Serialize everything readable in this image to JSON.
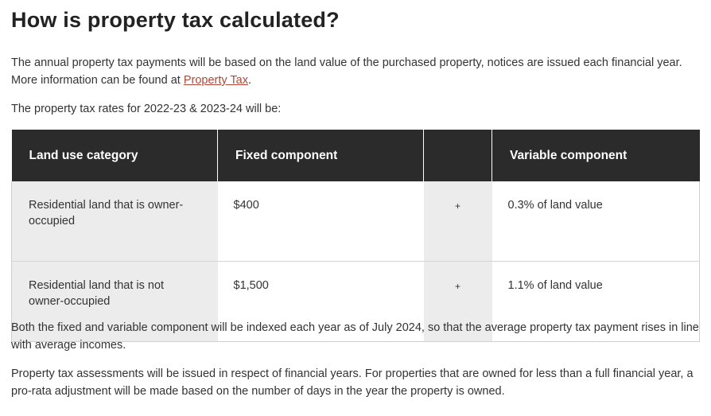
{
  "heading": "How is property tax calculated?",
  "intro": {
    "text_before": "The annual property tax payments will be based on the land value of the purchased property, notices are issued each financial year. More information can be found at ",
    "link_text": "Property Tax",
    "text_after": "."
  },
  "rates_intro": "The property tax rates for 2022-23 & 2023-24 will be:",
  "table": {
    "headers": [
      "Land use category",
      "Fixed component",
      "",
      "Variable component"
    ],
    "rows": [
      {
        "category": "Residential land that is owner-occupied",
        "fixed": "$400",
        "operator": "+",
        "variable": "0.3% of land value"
      },
      {
        "category": "Residential land that is not owner-occupied",
        "fixed": "$1,500",
        "operator": "+",
        "variable": "1.1% of land value"
      }
    ]
  },
  "indexing_note": "Both the fixed and variable component will be indexed each year as of July 2024, so that the average property tax payment rises in line with average incomes.",
  "assessment_note": "Property tax assessments will be issued in respect of financial years. For properties that are owned for less than a full financial year, a pro-rata adjustment will be made based on the number of days in the year the property is owned.",
  "colors": {
    "header_bg": "#2b2b2b",
    "link": "#b0483a",
    "shaded_cell": "#ececec"
  }
}
